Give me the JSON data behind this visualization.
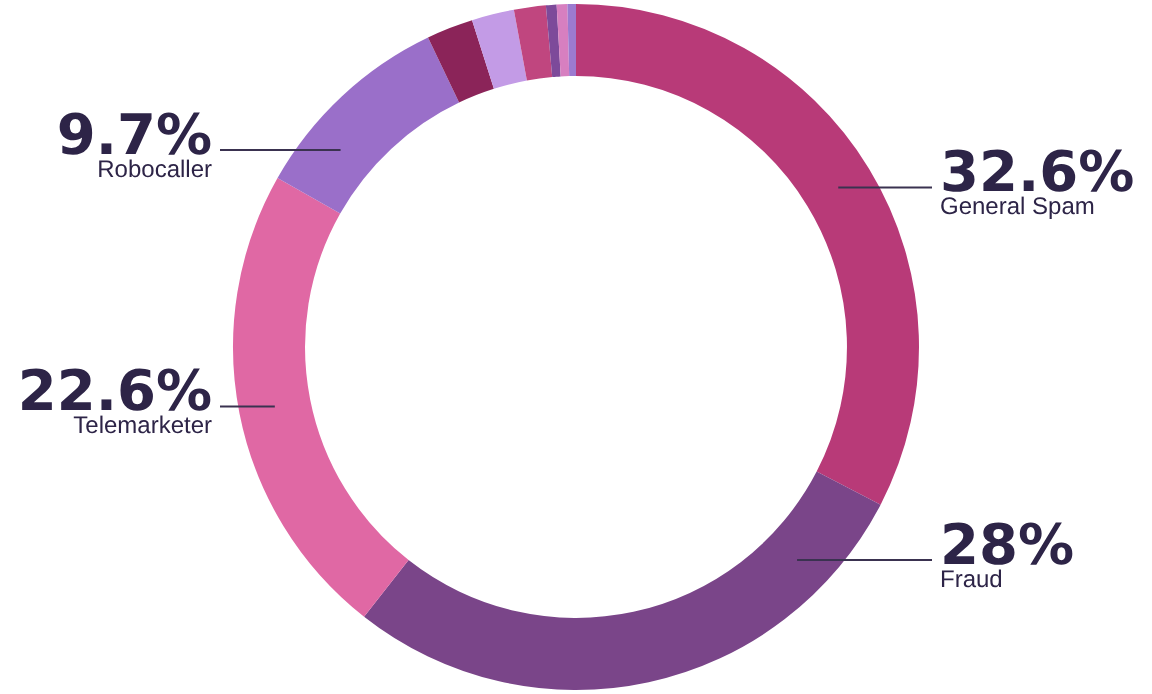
{
  "chart_data": {
    "type": "donut",
    "categories": [
      "General Spam",
      "Fraud",
      "Telemarketer",
      "Robocaller",
      null,
      null,
      null,
      null,
      null,
      null
    ],
    "values": [
      32.6,
      28,
      22.6,
      9.7,
      2.2,
      2.0,
      1.5,
      0.5,
      0.5,
      0.4
    ],
    "colors": [
      "#b83a78",
      "#7a4589",
      "#e068a4",
      "#9a6fc9",
      "#8b2459",
      "#c39be6",
      "#c0467f",
      "#7d4a9a",
      "#d77fc0",
      "#9c7ad0"
    ],
    "value_labels": [
      "32.6%",
      "28%",
      "22.6%",
      "9.7%",
      null,
      null,
      null,
      null,
      null,
      null
    ],
    "legend": false
  }
}
